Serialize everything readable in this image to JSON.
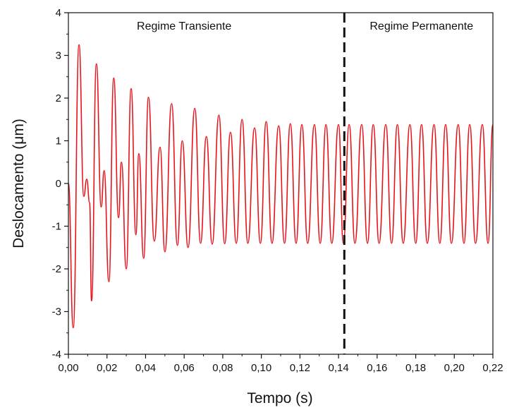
{
  "chart_data": {
    "type": "line",
    "title": "",
    "xlabel": "Tempo (s)",
    "ylabel": "Deslocamento (μm)",
    "xlim": [
      0.0,
      0.22
    ],
    "ylim": [
      -4,
      4
    ],
    "x_ticks": [
      "0,00",
      "0,02",
      "0,04",
      "0,06",
      "0,08",
      "0,10",
      "0,12",
      "0,14",
      "0,16",
      "0,18",
      "0,20",
      "0,22"
    ],
    "y_ticks": [
      "-4",
      "-3",
      "-2",
      "-1",
      "0",
      "1",
      "2",
      "3",
      "4"
    ],
    "grid": false,
    "series": [
      {
        "color": "#e8141c",
        "x": [
          0.0,
          0.0025,
          0.0055,
          0.008,
          0.0095,
          0.011,
          0.012,
          0.0145,
          0.017,
          0.0185,
          0.021,
          0.0235,
          0.026,
          0.0275,
          0.03,
          0.0325,
          0.035,
          0.0365,
          0.039,
          0.0415,
          0.0445,
          0.0475,
          0.05,
          0.0535,
          0.0565,
          0.059,
          0.062,
          0.0655,
          0.0685,
          0.0715,
          0.0745,
          0.078,
          0.081,
          0.084,
          0.087,
          0.09,
          0.093,
          0.0965,
          0.0995,
          0.1025,
          0.1055,
          0.109,
          0.112,
          0.115,
          0.118,
          0.121,
          0.124,
          0.1275,
          0.1305,
          0.1335,
          0.1365,
          0.14,
          0.1425,
          0.1455,
          0.1485,
          0.152,
          0.155,
          0.158,
          0.161,
          0.1645,
          0.1675,
          0.1705,
          0.1735,
          0.177,
          0.18,
          0.183,
          0.186,
          0.1895,
          0.1925,
          0.1955,
          0.1985,
          0.202,
          0.205,
          0.208,
          0.211,
          0.2145,
          0.2175,
          0.22
        ],
        "y": [
          0.0,
          -3.38,
          3.25,
          -0.3,
          0.1,
          -0.45,
          -2.75,
          2.8,
          -0.55,
          0.3,
          -2.3,
          2.47,
          -0.8,
          0.5,
          -2.0,
          2.22,
          -1.2,
          0.7,
          -1.75,
          2.02,
          -1.35,
          0.85,
          -1.6,
          1.87,
          -1.45,
          1.0,
          -1.5,
          1.76,
          -1.4,
          1.1,
          -1.42,
          1.6,
          -1.41,
          1.2,
          -1.4,
          1.5,
          -1.4,
          1.3,
          -1.4,
          1.45,
          -1.4,
          1.35,
          -1.4,
          1.4,
          -1.4,
          1.38,
          -1.4,
          1.38,
          -1.4,
          1.38,
          -1.4,
          1.38,
          -1.4,
          1.38,
          -1.4,
          1.38,
          -1.4,
          1.38,
          -1.4,
          1.38,
          -1.4,
          1.38,
          -1.4,
          1.38,
          -1.4,
          1.38,
          -1.4,
          1.38,
          -1.4,
          1.38,
          -1.4,
          1.38,
          -1.4,
          1.38,
          -1.4,
          1.38,
          -1.4,
          1.38
        ]
      }
    ],
    "annotations": [
      {
        "text": "Regime Transiente",
        "x": 0.06,
        "y": 3.7
      },
      {
        "text": "Regime Permanente",
        "x": 0.183,
        "y": 3.7
      }
    ],
    "divider_x": 0.143,
    "divider_style": "dashed"
  }
}
